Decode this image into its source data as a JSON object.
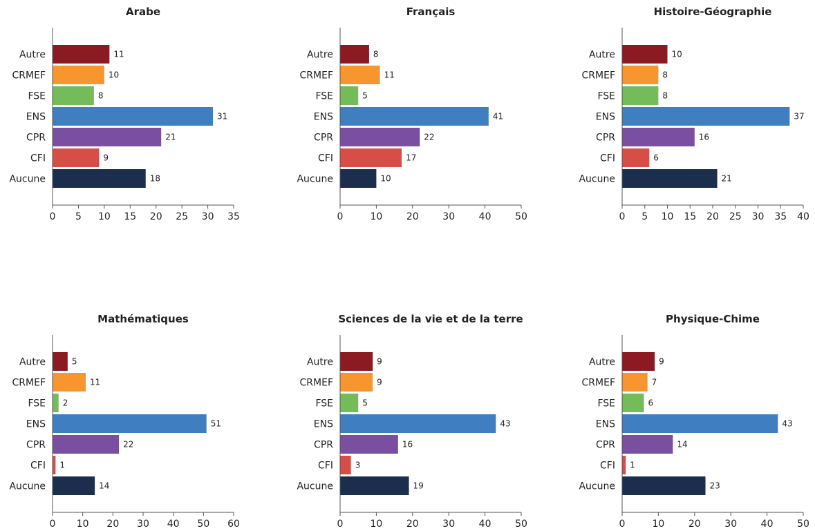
{
  "chart_data": [
    {
      "type": "bar",
      "orientation": "horizontal",
      "title": "Arabe",
      "categories": [
        "Autre",
        "CRMEF",
        "FSE",
        "ENS",
        "CPR",
        "CFI",
        "Aucune"
      ],
      "values": [
        11,
        10,
        8,
        31,
        21,
        9,
        18
      ],
      "xlim": [
        0,
        35
      ],
      "xticks": [
        0,
        5,
        10,
        15,
        20,
        25,
        30,
        35
      ]
    },
    {
      "type": "bar",
      "orientation": "horizontal",
      "title": "Français",
      "categories": [
        "Autre",
        "CRMEF",
        "FSE",
        "ENS",
        "CPR",
        "CFI",
        "Aucune"
      ],
      "values": [
        8,
        11,
        5,
        41,
        22,
        17,
        10
      ],
      "xlim": [
        0,
        50
      ],
      "xticks": [
        0,
        10,
        20,
        30,
        40,
        50
      ]
    },
    {
      "type": "bar",
      "orientation": "horizontal",
      "title": "Histoire-Géographie",
      "categories": [
        "Autre",
        "CRMEF",
        "FSE",
        "ENS",
        "CPR",
        "CFI",
        "Aucune"
      ],
      "values": [
        10,
        8,
        8,
        37,
        16,
        6,
        21
      ],
      "xlim": [
        0,
        40
      ],
      "xticks": [
        0,
        5,
        10,
        15,
        20,
        25,
        30,
        35,
        40
      ]
    },
    {
      "type": "bar",
      "orientation": "horizontal",
      "title": "Mathématiques",
      "categories": [
        "Autre",
        "CRMEF",
        "FSE",
        "ENS",
        "CPR",
        "CFI",
        "Aucune"
      ],
      "values": [
        5,
        11,
        2,
        51,
        22,
        1,
        14
      ],
      "xlim": [
        0,
        60
      ],
      "xticks": [
        0,
        10,
        20,
        30,
        40,
        50,
        60
      ]
    },
    {
      "type": "bar",
      "orientation": "horizontal",
      "title": "Sciences de la vie et de la terre",
      "categories": [
        "Autre",
        "CRMEF",
        "FSE",
        "ENS",
        "CPR",
        "CFI",
        "Aucune"
      ],
      "values": [
        9,
        9,
        5,
        43,
        16,
        3,
        19
      ],
      "xlim": [
        0,
        50
      ],
      "xticks": [
        0,
        10,
        20,
        30,
        40,
        50
      ]
    },
    {
      "type": "bar",
      "orientation": "horizontal",
      "title": "Physique-Chime",
      "categories": [
        "Autre",
        "CRMEF",
        "FSE",
        "ENS",
        "CPR",
        "CFI",
        "Aucune"
      ],
      "values": [
        9,
        7,
        6,
        43,
        14,
        1,
        23
      ],
      "xlim": [
        0,
        50
      ],
      "xticks": [
        0,
        10,
        20,
        30,
        40,
        50
      ]
    }
  ],
  "category_colors": {
    "Autre": "#8b1a22",
    "CRMEF": "#f7962f",
    "FSE": "#74bb59",
    "ENS": "#3f7fc1",
    "CPR": "#7a4ea0",
    "CFI": "#d84d46",
    "Aucune": "#1b2e4e"
  }
}
